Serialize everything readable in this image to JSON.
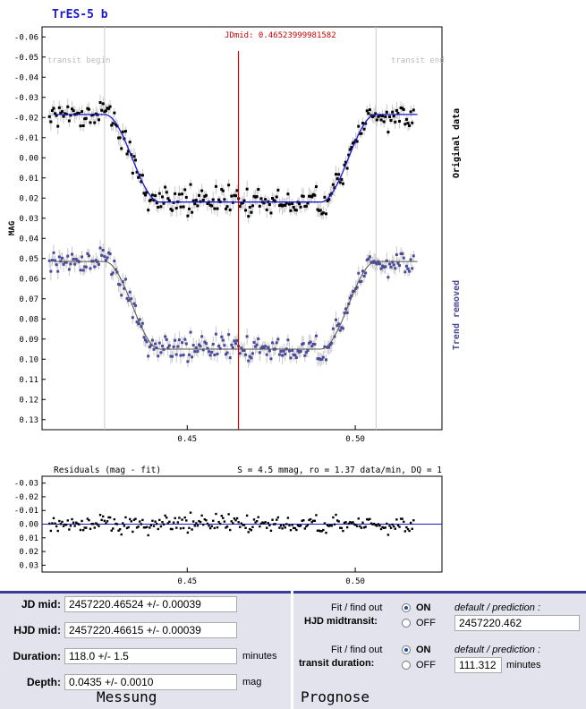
{
  "chart_data": [
    {
      "type": "scatter",
      "title": "TrES-5 b",
      "annotation": "JDmid: 0.46523999981582",
      "ylabel": "MAG",
      "transit_begin_label": "transit begin",
      "transit_end_label": "transit end",
      "x_ticks": [
        "0.45",
        "0.50"
      ],
      "y_ticks": [
        "-0.06",
        "-0.05",
        "-0.04",
        "-0.03",
        "-0.02",
        "-0.01",
        "0.00",
        "0.01",
        "0.02",
        "0.03",
        "0.04",
        "0.05",
        "0.06",
        "0.07",
        "0.08",
        "0.09",
        "0.10",
        "0.11",
        "0.12",
        "0.13"
      ],
      "xlim": [
        0.4068,
        0.5258
      ],
      "ylim": [
        -0.065,
        0.135
      ],
      "invert_y": true,
      "jd_mid": 0.46524,
      "transit_begin": 0.4254,
      "transit_end": 0.5062,
      "series": [
        {
          "name": "Original data",
          "color": "#000000",
          "baseline": -0.0215,
          "depth": 0.0435
        },
        {
          "name": "Trend removed",
          "color": "#4a4a9c",
          "baseline": 0.0515,
          "depth": 0.0435
        }
      ]
    },
    {
      "type": "scatter",
      "title": "Residuals (mag - fit)",
      "stats": "S = 4.5 mmag, ro = 1.37 data/min, DQ = 1",
      "x_ticks": [
        "0.45",
        "0.50"
      ],
      "y_ticks": [
        "-0.03",
        "-0.02",
        "-0.01",
        "0.00",
        "0.01",
        "0.02",
        "0.03"
      ],
      "xlim": [
        0.4068,
        0.5258
      ],
      "ylim": [
        -0.035,
        0.035
      ],
      "invert_y": true
    }
  ],
  "measurement": {
    "title": "Messung",
    "jd_mid_label": "JD mid:",
    "jd_mid_value": "2457220.46524 +/- 0.00039",
    "hjd_mid_label": "HJD mid:",
    "hjd_mid_value": "2457220.46615 +/- 0.00039",
    "duration_label": "Duration:",
    "duration_value": "118.0 +/- 1.5",
    "duration_unit": "minutes",
    "depth_label": "Depth:",
    "depth_value": "0.0435 +/- 0.0010",
    "depth_unit": "mag"
  },
  "prognose": {
    "title": "Prognose",
    "fit_label": "Fit / find out",
    "hjd_label": "HJD midtransit:",
    "duration_label": "transit duration:",
    "on_label": "ON",
    "off_label": "OFF",
    "default_label": "default / prediction :",
    "hjd_prediction": "2457220.462",
    "duration_prediction": "111.312",
    "duration_unit": "minutes"
  },
  "colors": {
    "fit": "#1a1acc",
    "trend": "#4a4a9c",
    "jdmid": "#cc0000",
    "panel_border": "#3a3a9a"
  }
}
